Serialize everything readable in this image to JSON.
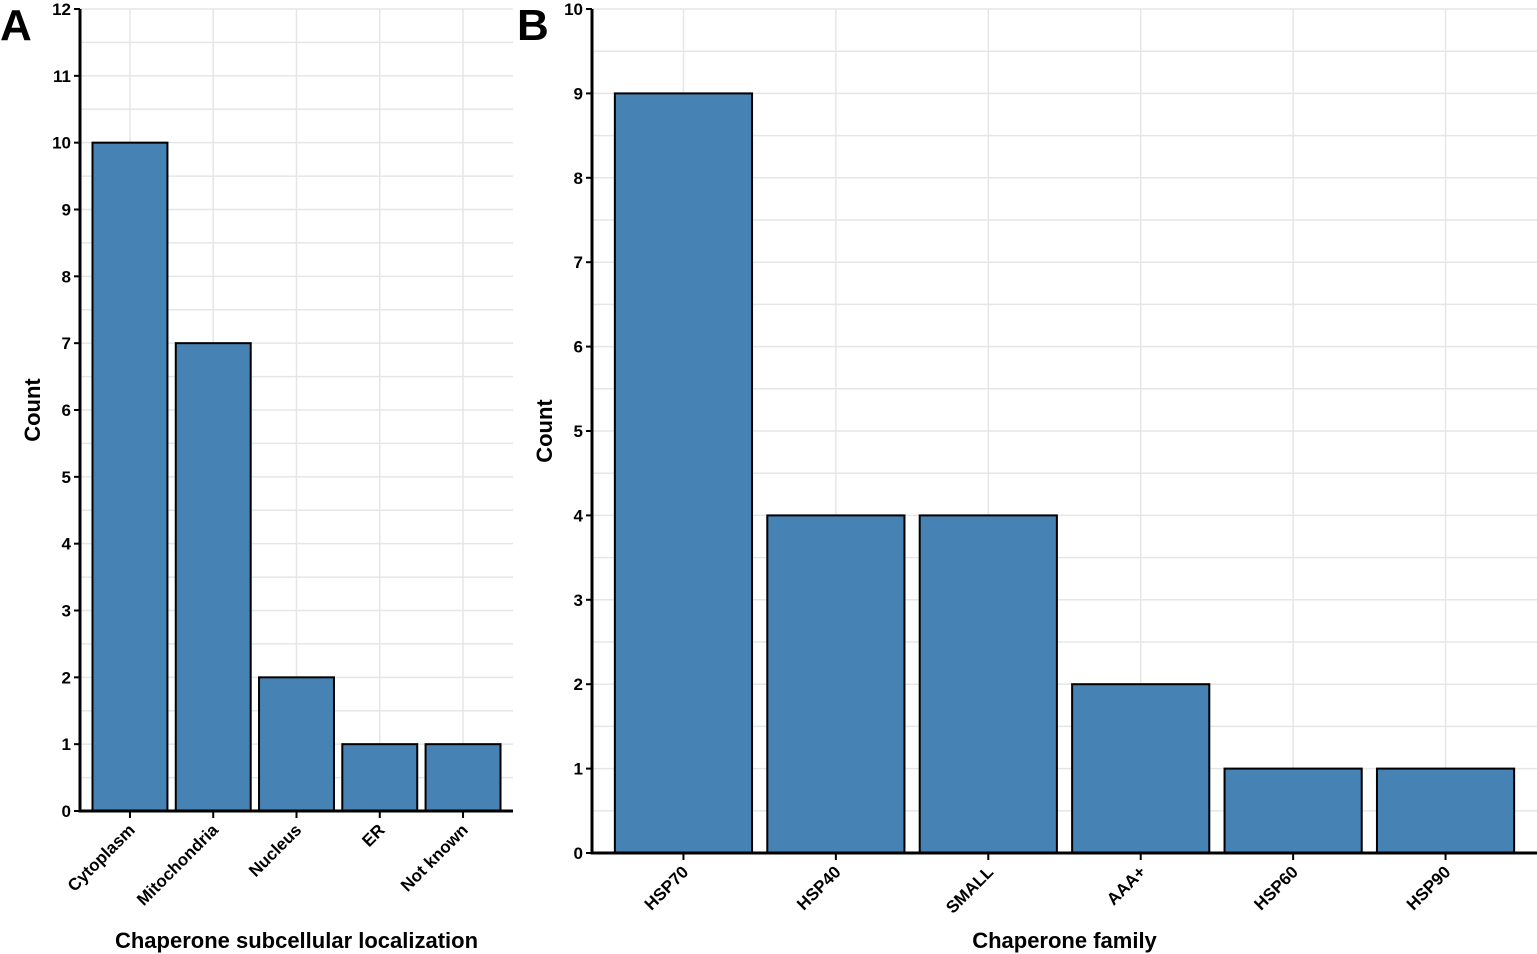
{
  "chart_data": [
    {
      "panel": "A",
      "type": "bar",
      "categories": [
        "Cytoplasm",
        "Mitochondria",
        "Nucleus",
        "ER",
        "Not known"
      ],
      "values": [
        10,
        7,
        2,
        1,
        1
      ],
      "xlabel": "Chaperone subcellular localization",
      "ylabel": "Count",
      "ylim": [
        0,
        12
      ],
      "yticks": [
        0,
        1,
        2,
        3,
        4,
        5,
        6,
        7,
        8,
        9,
        10,
        11,
        12
      ],
      "grid": true,
      "bar_color": "#4682b4"
    },
    {
      "panel": "B",
      "type": "bar",
      "categories": [
        "HSP70",
        "HSP40",
        "SMALL",
        "AAA+",
        "HSP60",
        "HSP90"
      ],
      "values": [
        9,
        4,
        4,
        2,
        1,
        1
      ],
      "xlabel": "Chaperone family",
      "ylabel": "Count",
      "ylim": [
        0,
        10
      ],
      "yticks": [
        0,
        1,
        2,
        3,
        4,
        5,
        6,
        7,
        8,
        9,
        10
      ],
      "grid": true,
      "bar_color": "#4682b4"
    }
  ]
}
